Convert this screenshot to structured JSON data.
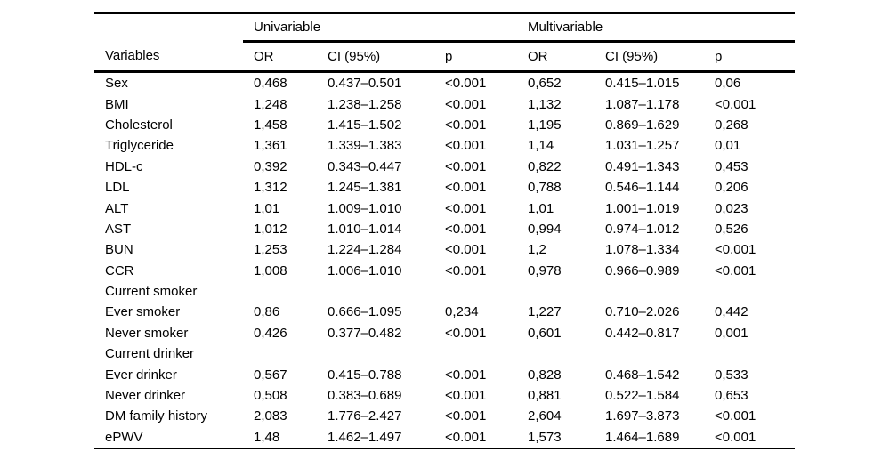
{
  "table": {
    "groups": {
      "univariable": "Univariable",
      "multivariable": "Multivariable"
    },
    "columns": {
      "variables": "Variables",
      "or": "OR",
      "ci": "CI (95%)",
      "p": "p"
    },
    "rows": [
      {
        "label": "Sex",
        "indent": 0,
        "cells": [
          "0,468",
          "0.437–0.501",
          "<0.001",
          "0,652",
          "0.415–1.015",
          "0,06"
        ]
      },
      {
        "label": "BMI",
        "indent": 0,
        "cells": [
          "1,248",
          "1.238–1.258",
          "<0.001",
          "1,132",
          "1.087–1.178",
          "<0.001"
        ]
      },
      {
        "label": "Cholesterol",
        "indent": 0,
        "cells": [
          "1,458",
          "1.415–1.502",
          "<0.001",
          "1,195",
          "0.869–1.629",
          "0,268"
        ]
      },
      {
        "label": "Triglyceride",
        "indent": 0,
        "cells": [
          "1,361",
          "1.339–1.383",
          "<0.001",
          "1,14",
          "1.031–1.257",
          "0,01"
        ]
      },
      {
        "label": "HDL-c",
        "indent": 0,
        "cells": [
          "0,392",
          "0.343–0.447",
          "<0.001",
          "0,822",
          "0.491–1.343",
          "0,453"
        ]
      },
      {
        "label": "LDL",
        "indent": 0,
        "cells": [
          "1,312",
          "1.245–1.381",
          "<0.001",
          "0,788",
          "0.546–1.144",
          "0,206"
        ]
      },
      {
        "label": "ALT",
        "indent": 0,
        "cells": [
          "1,01",
          "1.009–1.010",
          "<0.001",
          "1,01",
          "1.001–1.019",
          "0,023"
        ]
      },
      {
        "label": "AST",
        "indent": 0,
        "cells": [
          "1,012",
          "1.010–1.014",
          "<0.001",
          "0,994",
          "0.974–1.012",
          "0,526"
        ]
      },
      {
        "label": "BUN",
        "indent": 0,
        "cells": [
          "1,253",
          "1.224–1.284",
          "<0.001",
          "1,2",
          "1.078–1.334",
          "<0.001"
        ]
      },
      {
        "label": "CCR",
        "indent": 0,
        "cells": [
          "1,008",
          "1.006–1.010",
          "<0.001",
          "0,978",
          "0.966–0.989",
          "<0.001"
        ]
      },
      {
        "label": "Current smoker",
        "indent": 0,
        "cells": [
          "",
          "",
          "",
          "",
          "",
          ""
        ]
      },
      {
        "label": "Ever smoker",
        "indent": 1,
        "cells": [
          "0,86",
          "0.666–1.095",
          "0,234",
          "1,227",
          "0.710–2.026",
          "0,442"
        ]
      },
      {
        "label": "Never smoker",
        "indent": 1,
        "cells": [
          "0,426",
          "0.377–0.482",
          "<0.001",
          "0,601",
          "0.442–0.817",
          "0,001"
        ]
      },
      {
        "label": "Current drinker",
        "indent": 0,
        "cells": [
          "",
          "",
          "",
          "",
          "",
          ""
        ]
      },
      {
        "label": "Ever drinker",
        "indent": 1,
        "cells": [
          "0,567",
          "0.415–0.788",
          "<0.001",
          "0,828",
          "0.468–1.542",
          "0,533"
        ]
      },
      {
        "label": "Never drinker",
        "indent": 1,
        "cells": [
          "0,508",
          "0.383–0.689",
          "<0.001",
          "0,881",
          "0.522–1.584",
          "0,653"
        ]
      },
      {
        "label": "DM family history",
        "indent": 0,
        "cells": [
          "2,083",
          "1.776–2.427",
          "<0.001",
          "2,604",
          "1.697–3.873",
          "<0.001"
        ]
      },
      {
        "label": "ePWV",
        "indent": 0,
        "cells": [
          "1,48",
          "1.462–1.497",
          "<0.001",
          "1,573",
          "1.464–1.689",
          "<0.001"
        ]
      }
    ],
    "cell_names": [
      "cell-or-univariable",
      "cell-ci-univariable",
      "cell-p-univariable",
      "cell-or-multivariable",
      "cell-ci-multivariable",
      "cell-p-multivariable"
    ]
  }
}
